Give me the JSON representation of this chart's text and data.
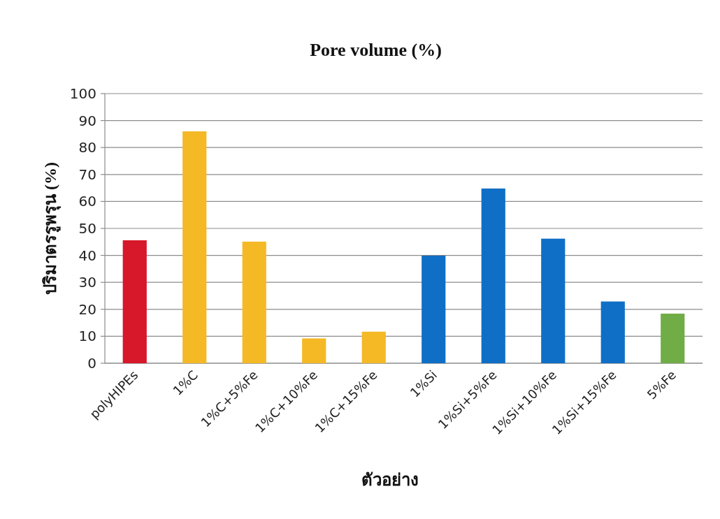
{
  "chart_data": {
    "type": "bar",
    "title": "Pore volume (%)",
    "xlabel": "ตัวอย่าง",
    "ylabel": "ปริมาตรรูพรุน (%)",
    "categories": [
      "polyHIPEs",
      "1%C",
      "1%C+5%Fe",
      "1%C+10%Fe",
      "1%C+15%Fe",
      "1%Si",
      "1%Si+5%Fe",
      "1%Si+10%Fe",
      "1%Si+15%Fe",
      "5%Fe"
    ],
    "values": [
      45.6,
      86.0,
      45.1,
      9.2,
      11.7,
      39.9,
      64.8,
      46.2,
      22.9,
      18.4
    ],
    "colors": [
      "#d7182a",
      "#f4b925",
      "#f4b925",
      "#f4b925",
      "#f4b925",
      "#0f6fc6",
      "#0f6fc6",
      "#0f6fc6",
      "#0f6fc6",
      "#70ad47"
    ],
    "ylim": [
      0,
      100
    ],
    "yticks": [
      0,
      10,
      20,
      30,
      40,
      50,
      60,
      70,
      80,
      90,
      100
    ],
    "grid": "y"
  }
}
